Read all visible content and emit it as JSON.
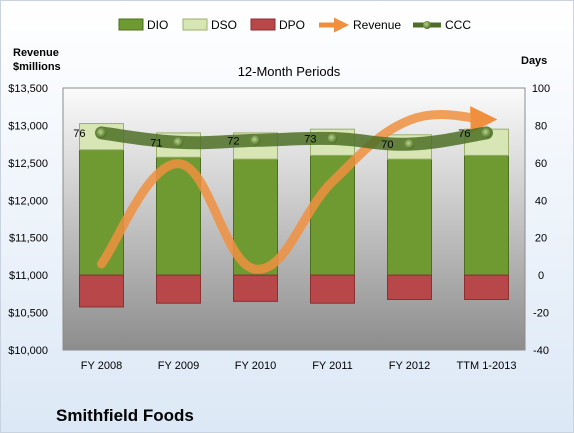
{
  "company_name": "Smithfield Foods",
  "colors": {
    "dio": "#6f9a32",
    "dso": "#d7e6b4",
    "dpo": "#b8474a",
    "revenue": "#f0903f",
    "ccc": "#4e6e26"
  },
  "chart_data": {
    "type": "bar",
    "title": "12-Month Periods",
    "categories": [
      "FY 2008",
      "FY 2009",
      "FY 2010",
      "FY 2011",
      "FY 2012",
      "TTM 1-2013"
    ],
    "legend": [
      "DIO",
      "DSO",
      "DPO",
      "Revenue",
      "CCC"
    ],
    "legend_position": "top",
    "left_axis": {
      "label_line1": "Revenue",
      "label_line2": "$millions",
      "range": [
        10000,
        13500
      ],
      "ticks": [
        "$13,500",
        "$13,000",
        "$12,500",
        "$12,000",
        "$11,500",
        "$11,000",
        "$10,500",
        "$10,000"
      ]
    },
    "right_axis": {
      "label": "Days",
      "range": [
        -40,
        100
      ],
      "ticks": [
        "100",
        "80",
        "60",
        "40",
        "20",
        "0",
        "-20",
        "-40"
      ]
    },
    "series": [
      {
        "name": "DIO",
        "axis": "days",
        "kind": "bar",
        "values": [
          67,
          63,
          62,
          64,
          62,
          64
        ]
      },
      {
        "name": "DSO",
        "axis": "days",
        "kind": "bar-stack",
        "values": [
          14,
          13,
          14,
          14,
          13,
          14
        ]
      },
      {
        "name": "DPO",
        "axis": "days",
        "kind": "bar-negative",
        "values": [
          -17,
          -15,
          -14,
          -15,
          -13,
          -13
        ]
      },
      {
        "name": "Revenue",
        "axis": "revenue",
        "kind": "line",
        "values": [
          11150,
          12490,
          11080,
          12250,
          13070,
          13080
        ]
      },
      {
        "name": "CCC",
        "axis": "days",
        "kind": "line",
        "values": [
          76,
          71,
          72,
          73,
          70,
          76
        ],
        "labels": [
          "76",
          "71",
          "72",
          "73",
          "70",
          "76"
        ]
      }
    ],
    "grid": false
  }
}
